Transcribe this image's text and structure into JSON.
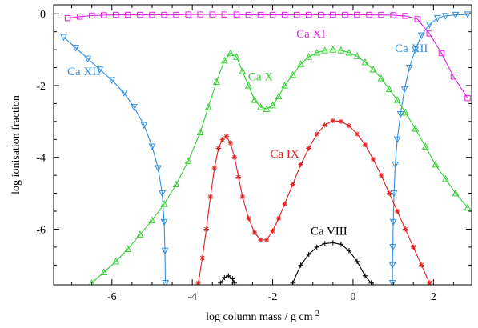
{
  "chart_data": {
    "type": "line",
    "title": "",
    "xlabel": "log column mass / g cm",
    "xlabel_sup": "-2",
    "ylabel": "log ionisation fraction",
    "xlim": [
      -7.45,
      2.95
    ],
    "ylim": [
      -7.55,
      0.25
    ],
    "xticks": [
      -6,
      -4,
      -2,
      0,
      2
    ],
    "yticks": [
      0,
      -2,
      -4,
      -6
    ],
    "grid": false,
    "legend": "inline labels",
    "series": [
      {
        "name": "Ca XI",
        "color": "#e020e0",
        "marker": "square",
        "label_pos": [
          -1.05,
          -0.55
        ],
        "points": [
          [
            -7.1,
            -0.12
          ],
          [
            -6.8,
            -0.08
          ],
          [
            -6.5,
            -0.05
          ],
          [
            -6.2,
            -0.04
          ],
          [
            -5.9,
            -0.03
          ],
          [
            -5.6,
            -0.03
          ],
          [
            -5.3,
            -0.03
          ],
          [
            -5.0,
            -0.03
          ],
          [
            -4.7,
            -0.03
          ],
          [
            -4.4,
            -0.03
          ],
          [
            -4.1,
            -0.02
          ],
          [
            -3.8,
            -0.02
          ],
          [
            -3.5,
            -0.02
          ],
          [
            -3.2,
            -0.02
          ],
          [
            -2.9,
            -0.02
          ],
          [
            -2.6,
            -0.03
          ],
          [
            -2.3,
            -0.03
          ],
          [
            -2.0,
            -0.03
          ],
          [
            -1.7,
            -0.03
          ],
          [
            -1.4,
            -0.03
          ],
          [
            -1.1,
            -0.03
          ],
          [
            -0.8,
            -0.03
          ],
          [
            -0.5,
            -0.03
          ],
          [
            -0.2,
            -0.03
          ],
          [
            0.1,
            -0.03
          ],
          [
            0.4,
            -0.03
          ],
          [
            0.7,
            -0.03
          ],
          [
            1.0,
            -0.04
          ],
          [
            1.3,
            -0.06
          ],
          [
            1.6,
            -0.15
          ],
          [
            1.9,
            -0.55
          ],
          [
            2.2,
            -1.1
          ],
          [
            2.5,
            -1.75
          ],
          [
            2.85,
            -2.35
          ]
        ]
      },
      {
        "name": "Ca XII",
        "color": "#3090e0",
        "marker": "triangle-down",
        "label_pos": [
          -6.7,
          -1.6
        ],
        "points": [
          [
            -7.2,
            -0.65
          ],
          [
            -6.9,
            -0.95
          ],
          [
            -6.6,
            -1.25
          ],
          [
            -6.3,
            -1.55
          ],
          [
            -6.0,
            -1.85
          ],
          [
            -5.7,
            -2.2
          ],
          [
            -5.45,
            -2.6
          ],
          [
            -5.2,
            -3.1
          ],
          [
            -5.0,
            -3.7
          ],
          [
            -4.85,
            -4.3
          ],
          [
            -4.75,
            -5.0
          ],
          [
            -4.7,
            -5.8
          ],
          [
            -4.68,
            -6.6
          ],
          [
            -4.67,
            -7.5
          ]
        ]
      },
      {
        "name": "Ca XII",
        "color": "#3090e0",
        "marker": "triangle-down",
        "label_pos": [
          1.45,
          -0.95
        ],
        "points": [
          [
            0.98,
            -7.5
          ],
          [
            0.98,
            -7.0
          ],
          [
            0.99,
            -6.5
          ],
          [
            1.0,
            -5.8
          ],
          [
            1.02,
            -5.0
          ],
          [
            1.05,
            -4.2
          ],
          [
            1.1,
            -3.5
          ],
          [
            1.18,
            -2.8
          ],
          [
            1.28,
            -2.1
          ],
          [
            1.4,
            -1.5
          ],
          [
            1.55,
            -1.0
          ],
          [
            1.7,
            -0.6
          ],
          [
            1.9,
            -0.3
          ],
          [
            2.1,
            -0.12
          ],
          [
            2.3,
            -0.06
          ],
          [
            2.55,
            -0.03
          ],
          [
            2.85,
            -0.02
          ]
        ]
      },
      {
        "name": "Ca X",
        "color": "#30d030",
        "marker": "triangle-up",
        "label_pos": [
          -2.3,
          -1.75
        ],
        "points": [
          [
            -6.5,
            -7.5
          ],
          [
            -6.2,
            -7.2
          ],
          [
            -5.9,
            -6.9
          ],
          [
            -5.6,
            -6.55
          ],
          [
            -5.3,
            -6.15
          ],
          [
            -5.0,
            -5.75
          ],
          [
            -4.7,
            -5.3
          ],
          [
            -4.4,
            -4.75
          ],
          [
            -4.1,
            -4.1
          ],
          [
            -3.8,
            -3.3
          ],
          [
            -3.6,
            -2.6
          ],
          [
            -3.4,
            -1.9
          ],
          [
            -3.2,
            -1.3
          ],
          [
            -3.05,
            -1.1
          ],
          [
            -2.9,
            -1.2
          ],
          [
            -2.75,
            -1.6
          ],
          [
            -2.6,
            -2.0
          ],
          [
            -2.45,
            -2.4
          ],
          [
            -2.3,
            -2.6
          ],
          [
            -2.15,
            -2.65
          ],
          [
            -2.0,
            -2.55
          ],
          [
            -1.85,
            -2.3
          ],
          [
            -1.7,
            -2.0
          ],
          [
            -1.5,
            -1.7
          ],
          [
            -1.3,
            -1.4
          ],
          [
            -1.1,
            -1.2
          ],
          [
            -0.9,
            -1.08
          ],
          [
            -0.7,
            -1.02
          ],
          [
            -0.5,
            -1.0
          ],
          [
            -0.3,
            -1.02
          ],
          [
            -0.1,
            -1.08
          ],
          [
            0.1,
            -1.18
          ],
          [
            0.3,
            -1.35
          ],
          [
            0.5,
            -1.55
          ],
          [
            0.7,
            -1.8
          ],
          [
            0.9,
            -2.1
          ],
          [
            1.1,
            -2.4
          ],
          [
            1.3,
            -2.75
          ],
          [
            1.55,
            -3.2
          ],
          [
            1.8,
            -3.7
          ],
          [
            2.05,
            -4.2
          ],
          [
            2.3,
            -4.6
          ],
          [
            2.55,
            -5.0
          ],
          [
            2.85,
            -5.4
          ]
        ]
      },
      {
        "name": "Ca IX",
        "color": "#e02020",
        "marker": "asterisk",
        "label_pos": [
          -1.7,
          -3.9
        ],
        "points": [
          [
            -3.85,
            -7.5
          ],
          [
            -3.75,
            -6.8
          ],
          [
            -3.65,
            -6.0
          ],
          [
            -3.55,
            -5.1
          ],
          [
            -3.45,
            -4.3
          ],
          [
            -3.35,
            -3.75
          ],
          [
            -3.25,
            -3.5
          ],
          [
            -3.15,
            -3.42
          ],
          [
            -3.05,
            -3.6
          ],
          [
            -2.95,
            -4.0
          ],
          [
            -2.85,
            -4.55
          ],
          [
            -2.75,
            -5.1
          ],
          [
            -2.6,
            -5.7
          ],
          [
            -2.45,
            -6.1
          ],
          [
            -2.3,
            -6.3
          ],
          [
            -2.15,
            -6.3
          ],
          [
            -2.0,
            -6.05
          ],
          [
            -1.85,
            -5.7
          ],
          [
            -1.7,
            -5.3
          ],
          [
            -1.5,
            -4.75
          ],
          [
            -1.3,
            -4.2
          ],
          [
            -1.1,
            -3.75
          ],
          [
            -0.9,
            -3.35
          ],
          [
            -0.7,
            -3.1
          ],
          [
            -0.5,
            -2.98
          ],
          [
            -0.3,
            -3.0
          ],
          [
            -0.1,
            -3.12
          ],
          [
            0.1,
            -3.35
          ],
          [
            0.3,
            -3.65
          ],
          [
            0.5,
            -4.05
          ],
          [
            0.7,
            -4.5
          ],
          [
            0.9,
            -5.0
          ],
          [
            1.1,
            -5.5
          ],
          [
            1.3,
            -6.0
          ],
          [
            1.5,
            -6.5
          ],
          [
            1.7,
            -7.0
          ],
          [
            1.9,
            -7.5
          ]
        ]
      },
      {
        "name": "Ca VIII",
        "color": "#000000",
        "marker": "plus",
        "label_pos": [
          -0.6,
          -6.05
        ],
        "points": [
          [
            -1.5,
            -7.5
          ],
          [
            -1.3,
            -7.0
          ],
          [
            -1.1,
            -6.7
          ],
          [
            -0.9,
            -6.5
          ],
          [
            -0.7,
            -6.4
          ],
          [
            -0.5,
            -6.38
          ],
          [
            -0.3,
            -6.42
          ],
          [
            -0.1,
            -6.6
          ],
          [
            0.1,
            -6.9
          ],
          [
            0.3,
            -7.3
          ],
          [
            0.45,
            -7.5
          ]
        ]
      },
      {
        "name": "",
        "color": "#000000",
        "marker": "plus",
        "points": [
          [
            -3.3,
            -7.5
          ],
          [
            -3.2,
            -7.35
          ],
          [
            -3.1,
            -7.3
          ],
          [
            -3.0,
            -7.38
          ],
          [
            -2.95,
            -7.5
          ]
        ]
      }
    ]
  }
}
